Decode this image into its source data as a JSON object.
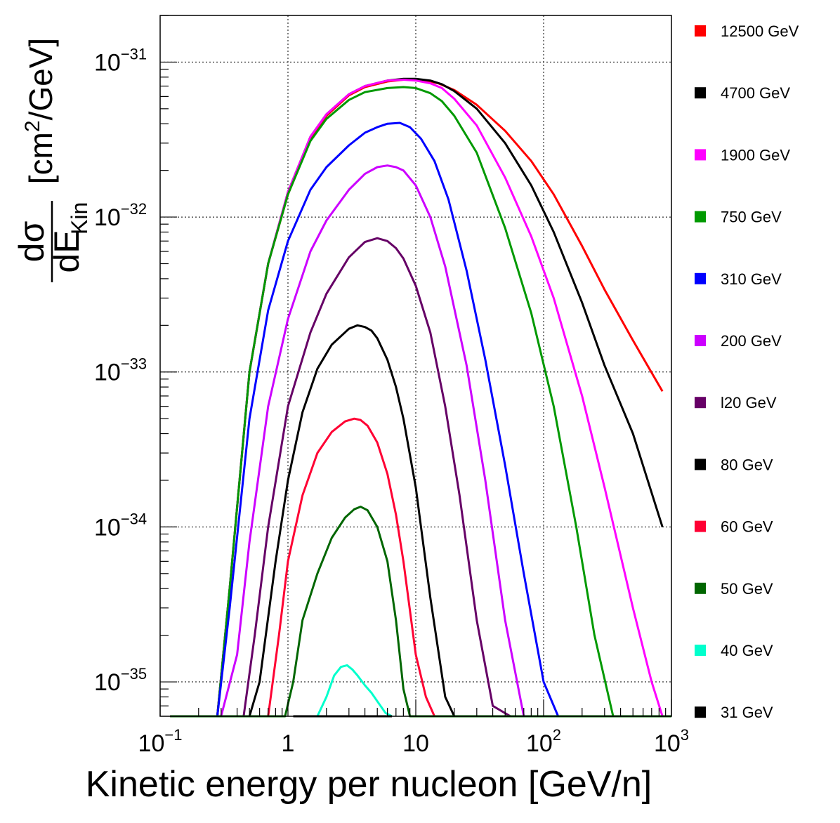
{
  "chart_data": {
    "type": "line",
    "title": "",
    "xlabel": "Kinetic energy per nucleon [GeV/n]",
    "ylabel": {
      "numerator": "dσ",
      "denominator_main": "dE",
      "denominator_sub": "Kin",
      "unit_open": "[cm",
      "unit_sup": "2",
      "unit_close": "/GeV]"
    },
    "x_scale": "log",
    "y_scale": "log",
    "xlim": [
      0.1,
      1000
    ],
    "ylim": [
      6e-36,
      2e-31
    ],
    "grid": true,
    "legend_position": "right",
    "x_ticks": [
      {
        "value": 0.1,
        "base": "10",
        "exp": "−1"
      },
      {
        "value": 1,
        "base": "1",
        "exp": ""
      },
      {
        "value": 10,
        "base": "10",
        "exp": ""
      },
      {
        "value": 100,
        "base": "10",
        "exp": "2"
      },
      {
        "value": 1000,
        "base": "10",
        "exp": "3"
      }
    ],
    "y_ticks": [
      {
        "value": 1e-35,
        "base": "10",
        "exp": "−35"
      },
      {
        "value": 1e-34,
        "base": "10",
        "exp": "−34"
      },
      {
        "value": 1e-33,
        "base": "10",
        "exp": "−33"
      },
      {
        "value": 1e-32,
        "base": "10",
        "exp": "−32"
      },
      {
        "value": 1e-31,
        "base": "10",
        "exp": "−31"
      }
    ],
    "series": [
      {
        "name": "12500 GeV",
        "color": "#ff0000",
        "x": [
          0.12,
          0.28,
          0.35,
          0.5,
          0.7,
          1.0,
          1.5,
          2,
          3,
          4,
          6,
          8,
          10,
          12,
          15,
          20,
          30,
          50,
          80,
          120,
          200,
          300,
          500,
          850
        ],
        "y": [
          6e-36,
          6e-36,
          4e-35,
          1e-33,
          5e-33,
          1.4e-32,
          3.2e-32,
          4.5e-32,
          6.1e-32,
          6.9e-32,
          7.5e-32,
          7.7e-32,
          7.7e-32,
          7.6e-32,
          7.3e-32,
          6.6e-32,
          5.3e-32,
          3.6e-32,
          2.3e-32,
          1.4e-32,
          6.5e-33,
          3.4e-33,
          1.6e-33,
          7.5e-34
        ]
      },
      {
        "name": "4700 GeV",
        "color": "#000000",
        "x": [
          0.12,
          0.28,
          0.35,
          0.5,
          0.7,
          1.0,
          1.5,
          2,
          3,
          4,
          6,
          8,
          10,
          13,
          16,
          20,
          30,
          50,
          80,
          120,
          200,
          300,
          500,
          850
        ],
        "y": [
          6e-36,
          6e-36,
          4e-35,
          1e-33,
          5e-33,
          1.45e-32,
          3.3e-32,
          4.6e-32,
          6.2e-32,
          7e-32,
          7.6e-32,
          7.8e-32,
          7.8e-32,
          7.6e-32,
          7.2e-32,
          6.5e-32,
          5e-32,
          3e-32,
          1.6e-32,
          8e-33,
          2.8e-33,
          1.1e-33,
          4e-34,
          1e-34
        ]
      },
      {
        "name": "1900 GeV",
        "color": "#ff00ff",
        "x": [
          0.12,
          0.28,
          0.35,
          0.5,
          0.7,
          1.0,
          1.5,
          2,
          3,
          4,
          6,
          8,
          10,
          13,
          16,
          20,
          30,
          50,
          80,
          120,
          200,
          300,
          500,
          700,
          850,
          1000
        ],
        "y": [
          6e-36,
          6e-36,
          4e-35,
          1e-33,
          5e-33,
          1.45e-32,
          3.3e-32,
          4.6e-32,
          6.2e-32,
          7e-32,
          7.6e-32,
          7.7e-32,
          7.6e-32,
          7.3e-32,
          6.8e-32,
          5.8e-32,
          3.9e-32,
          1.8e-32,
          7.5e-33,
          3e-33,
          7e-34,
          1.8e-34,
          3e-35,
          1e-35,
          6e-36,
          6e-36
        ]
      },
      {
        "name": "750 GeV",
        "color": "#009900",
        "x": [
          0.12,
          0.28,
          0.35,
          0.5,
          0.7,
          1.0,
          1.5,
          2,
          3,
          4,
          6,
          8,
          10,
          13,
          16,
          20,
          30,
          50,
          80,
          120,
          180,
          250,
          350,
          500,
          1000
        ],
        "y": [
          6e-36,
          6e-36,
          4e-35,
          1e-33,
          5e-33,
          1.4e-32,
          3.1e-32,
          4.3e-32,
          5.7e-32,
          6.4e-32,
          6.8e-32,
          6.9e-32,
          6.8e-32,
          6.3e-32,
          5.6e-32,
          4.5e-32,
          2.6e-32,
          8.5e-33,
          2.4e-33,
          6e-34,
          1e-34,
          2e-35,
          6e-36,
          6e-36,
          6e-36
        ]
      },
      {
        "name": "310 GeV",
        "color": "#0000ff",
        "x": [
          0.12,
          0.28,
          0.35,
          0.5,
          0.7,
          1.0,
          1.5,
          2,
          3,
          4,
          5,
          6,
          7.5,
          9,
          11,
          14,
          18,
          25,
          35,
          50,
          70,
          100,
          130,
          160,
          200,
          1000
        ],
        "y": [
          6e-36,
          6e-36,
          3e-35,
          5e-34,
          2.5e-33,
          7e-33,
          1.5e-32,
          2.1e-32,
          2.9e-32,
          3.5e-32,
          3.8e-32,
          4e-32,
          4.05e-32,
          3.8e-32,
          3.2e-32,
          2.3e-32,
          1.3e-32,
          4.5e-33,
          1.2e-33,
          2.5e-34,
          5e-35,
          1e-35,
          6e-36,
          6e-36,
          6e-36,
          6e-36
        ]
      },
      {
        "name": "200 GeV",
        "color": "#cc00ff",
        "x": [
          0.12,
          0.3,
          0.4,
          0.5,
          0.7,
          1.0,
          1.5,
          2,
          3,
          4,
          5,
          6,
          7,
          8,
          10,
          13,
          17,
          25,
          35,
          50,
          70,
          90,
          120,
          1000
        ],
        "y": [
          6e-36,
          6e-36,
          1.5e-35,
          8e-35,
          6e-34,
          2.2e-33,
          6e-33,
          9.5e-33,
          1.5e-32,
          1.9e-32,
          2.1e-32,
          2.15e-32,
          2.1e-32,
          2e-32,
          1.6e-32,
          1e-32,
          4.8e-33,
          1.1e-33,
          2e-34,
          2.5e-35,
          6e-36,
          6e-36,
          6e-36,
          6e-36
        ]
      },
      {
        "name": "l20 GeV",
        "color": "#660066",
        "x": [
          0.12,
          0.45,
          0.55,
          0.7,
          1.0,
          1.5,
          2,
          3,
          4,
          5,
          6,
          7,
          8,
          10,
          13,
          17,
          22,
          30,
          40,
          55,
          80,
          1000
        ],
        "y": [
          6e-36,
          6e-36,
          2e-35,
          1e-34,
          6e-34,
          1.8e-33,
          3.2e-33,
          5.5e-33,
          6.9e-33,
          7.3e-33,
          7e-33,
          6.3e-33,
          5.4e-33,
          3.6e-33,
          1.8e-33,
          6e-34,
          1.6e-34,
          2.5e-35,
          7e-36,
          6e-36,
          6e-36,
          6e-36
        ]
      },
      {
        "name": "80 GeV",
        "color": "#000000",
        "x": [
          0.12,
          0.5,
          0.6,
          0.8,
          1.0,
          1.3,
          1.7,
          2.2,
          3,
          3.5,
          4,
          4.5,
          5,
          6,
          7,
          8,
          10,
          13,
          17,
          20,
          25,
          1000
        ],
        "y": [
          6e-36,
          6e-36,
          1e-35,
          6e-35,
          2e-34,
          5.5e-34,
          1.05e-33,
          1.5e-33,
          1.9e-33,
          2e-33,
          1.95e-33,
          1.85e-33,
          1.65e-33,
          1.2e-33,
          8e-34,
          5e-34,
          1.8e-34,
          3.5e-35,
          8e-36,
          6e-36,
          6e-36,
          6e-36
        ]
      },
      {
        "name": "60 GeV",
        "color": "#ff0033",
        "x": [
          0.12,
          0.7,
          0.85,
          1.0,
          1.3,
          1.7,
          2.2,
          2.8,
          3.3,
          3.7,
          4.2,
          5,
          6,
          7,
          8,
          10,
          12,
          14,
          16,
          1000
        ],
        "y": [
          6e-36,
          6e-36,
          2e-35,
          6e-35,
          1.6e-34,
          3e-34,
          4.1e-34,
          4.8e-34,
          5e-34,
          4.9e-34,
          4.5e-34,
          3.5e-34,
          2.2e-34,
          1.2e-34,
          6e-35,
          1.5e-35,
          8e-36,
          6e-36,
          6e-36,
          6e-36
        ]
      },
      {
        "name": "50 GeV",
        "color": "#006600",
        "x": [
          0.12,
          0.95,
          1.1,
          1.3,
          1.7,
          2.2,
          2.8,
          3.3,
          3.7,
          4.2,
          5,
          6,
          7,
          8,
          9,
          10,
          1000
        ],
        "y": [
          6e-36,
          6e-36,
          1e-35,
          2.5e-35,
          5e-35,
          8.5e-35,
          1.15e-34,
          1.3e-34,
          1.35e-34,
          1.28e-34,
          1e-34,
          6e-35,
          2.5e-35,
          9e-36,
          6e-36,
          6e-36,
          6e-36
        ]
      },
      {
        "name": "40 GeV",
        "color": "#00ffcc",
        "x": [
          1.7,
          2.0,
          2.3,
          2.6,
          2.9,
          3.2,
          3.5,
          4.0,
          4.5,
          5.0,
          5.8,
          6.5
        ],
        "y": [
          6e-36,
          8e-36,
          1.1e-35,
          1.25e-35,
          1.28e-35,
          1.2e-35,
          1.1e-35,
          9.5e-36,
          8.5e-36,
          7.5e-36,
          6.3e-36,
          6e-36
        ]
      },
      {
        "name": "31 GeV",
        "color": "#000000",
        "x": [
          1.1,
          6.5
        ],
        "y": [
          6e-36,
          6e-36
        ]
      }
    ]
  }
}
